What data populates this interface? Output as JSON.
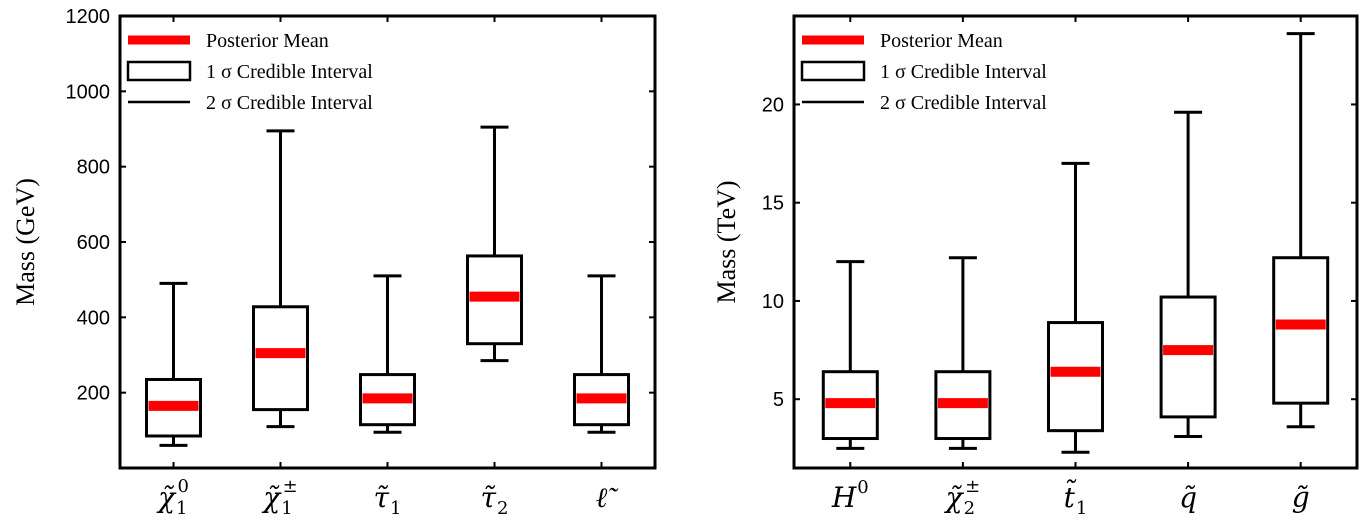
{
  "chart_data": [
    {
      "type": "box",
      "ylabel": "Mass (GeV)",
      "ylim": [
        0,
        1200
      ],
      "yticks": [
        200,
        400,
        600,
        800,
        1000,
        1200
      ],
      "categories": [
        {
          "base": "χ̃",
          "sub": "1",
          "sup": "0"
        },
        {
          "base": "χ̃",
          "sub": "1",
          "sup": "±"
        },
        {
          "base": "τ̃",
          "sub": "1",
          "sup": ""
        },
        {
          "base": "τ̃",
          "sub": "2",
          "sup": ""
        },
        {
          "base": "ℓ̃",
          "sub": "",
          "sup": ""
        }
      ],
      "boxes": [
        {
          "whisker_low": 60,
          "q_low": 85,
          "mean": 165,
          "q_high": 235,
          "whisker_high": 490
        },
        {
          "whisker_low": 110,
          "q_low": 155,
          "mean": 305,
          "q_high": 428,
          "whisker_high": 895
        },
        {
          "whisker_low": 95,
          "q_low": 115,
          "mean": 185,
          "q_high": 248,
          "whisker_high": 510
        },
        {
          "whisker_low": 285,
          "q_low": 330,
          "mean": 455,
          "q_high": 563,
          "whisker_high": 905
        },
        {
          "whisker_low": 95,
          "q_low": 115,
          "mean": 185,
          "q_high": 248,
          "whisker_high": 510
        }
      ],
      "legend": {
        "placement": "top-left",
        "mean_label": "Posterior Mean",
        "one_sigma_label": "1 σ Credible Interval",
        "two_sigma_label": "2 σ Credible Interval"
      }
    },
    {
      "type": "box",
      "ylabel": "Mass (TeV)",
      "ylim": [
        1.5,
        24.5
      ],
      "yticks": [
        5,
        10,
        15,
        20
      ],
      "categories": [
        {
          "base": "H",
          "sub": "",
          "sup": "0"
        },
        {
          "base": "χ̃",
          "sub": "2",
          "sup": "±"
        },
        {
          "base": "t̃",
          "sub": "1",
          "sup": ""
        },
        {
          "base": "q̃",
          "sub": "",
          "sup": ""
        },
        {
          "base": "g̃",
          "sub": "",
          "sup": ""
        }
      ],
      "boxes": [
        {
          "whisker_low": 2.5,
          "q_low": 3.0,
          "mean": 4.8,
          "q_high": 6.4,
          "whisker_high": 12.0
        },
        {
          "whisker_low": 2.5,
          "q_low": 3.0,
          "mean": 4.8,
          "q_high": 6.4,
          "whisker_high": 12.2
        },
        {
          "whisker_low": 2.3,
          "q_low": 3.4,
          "mean": 6.4,
          "q_high": 8.9,
          "whisker_high": 17.0
        },
        {
          "whisker_low": 3.1,
          "q_low": 4.1,
          "mean": 7.5,
          "q_high": 10.2,
          "whisker_high": 19.6
        },
        {
          "whisker_low": 3.6,
          "q_low": 4.8,
          "mean": 8.8,
          "q_high": 12.2,
          "whisker_high": 23.6
        }
      ],
      "legend": {
        "placement": "top-left",
        "mean_label": "Posterior Mean",
        "one_sigma_label": "1 σ Credible Interval",
        "two_sigma_label": "2 σ Credible Interval"
      }
    }
  ],
  "colors": {
    "mean": "#ff0000",
    "line": "#000000",
    "background": "#ffffff"
  }
}
